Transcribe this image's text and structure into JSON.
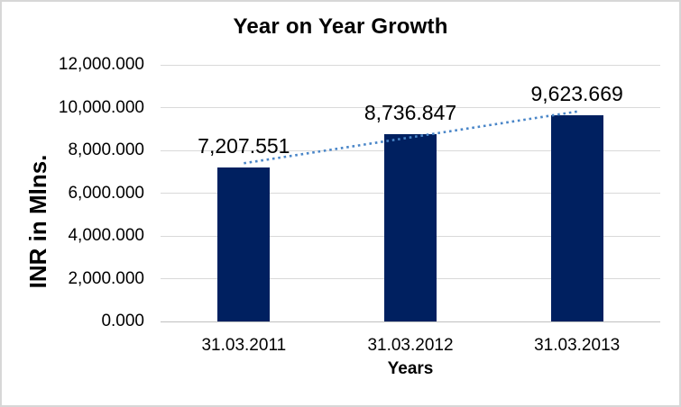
{
  "chart_data": {
    "type": "bar",
    "title": "Year on Year Growth",
    "xlabel": "Years",
    "ylabel": "INR in Mlns.",
    "categories": [
      "31.03.2011",
      "31.03.2012",
      "31.03.2013"
    ],
    "values": [
      7207.551,
      8736.847,
      9623.669
    ],
    "data_labels": [
      "7,207.551",
      "8,736.847",
      "9,623.669"
    ],
    "y_ticks": [
      "12,000.000",
      "10,000.000",
      "8,000.000",
      "6,000.000",
      "4,000.000",
      "2,000.000",
      "0.000"
    ],
    "y_tick_values": [
      12000,
      10000,
      8000,
      6000,
      4000,
      2000,
      0
    ],
    "ylim": [
      0,
      12000
    ],
    "grid": true,
    "legend": "none",
    "bar_color": "#002060",
    "gridline_color": "#d9d9d9",
    "trendline": {
      "type": "linear",
      "style": "dotted",
      "color": "#4a86c8"
    }
  }
}
